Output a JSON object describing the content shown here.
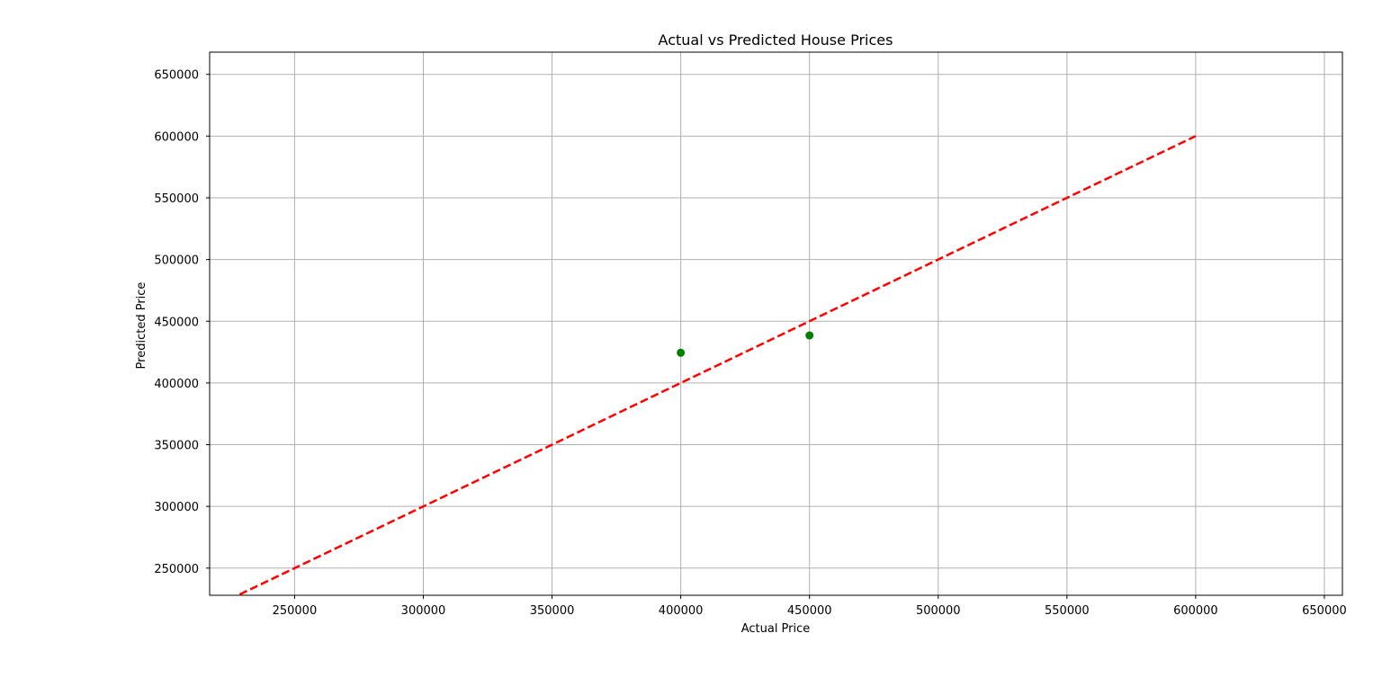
{
  "chart_data": {
    "type": "scatter",
    "title": "Actual vs Predicted House Prices",
    "xlabel": "Actual Price",
    "ylabel": "Predicted Price",
    "xlim": [
      217000,
      657000
    ],
    "ylim": [
      228000,
      668000
    ],
    "x_ticks": [
      250000,
      300000,
      350000,
      400000,
      450000,
      500000,
      550000,
      600000,
      650000
    ],
    "y_ticks": [
      250000,
      300000,
      350000,
      400000,
      450000,
      500000,
      550000,
      600000,
      650000
    ],
    "x_tick_labels": [
      "250000",
      "300000",
      "350000",
      "400000",
      "450000",
      "500000",
      "550000",
      "600000",
      "650000"
    ],
    "y_tick_labels": [
      "250000",
      "300000",
      "350000",
      "400000",
      "450000",
      "500000",
      "550000",
      "600000",
      "650000"
    ],
    "grid": true,
    "series": [
      {
        "type": "scatter",
        "color": "#008000",
        "points": [
          {
            "x": 400000,
            "y": 424500
          },
          {
            "x": 450000,
            "y": 438500
          }
        ]
      },
      {
        "type": "line",
        "style": "dashed",
        "color": "#ff0000",
        "points": [
          {
            "x": 200000,
            "y": 200000
          },
          {
            "x": 600000,
            "y": 600000
          }
        ]
      }
    ]
  }
}
